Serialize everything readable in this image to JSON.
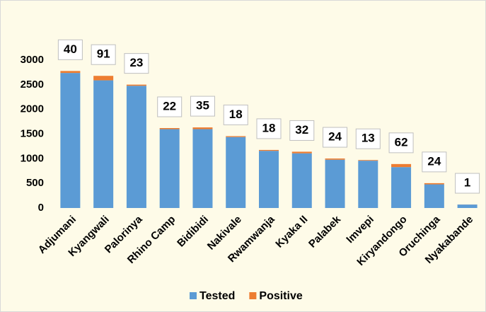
{
  "chart_data": {
    "type": "bar",
    "stacked": true,
    "categories": [
      "Adjumani",
      "Kyangwali",
      "Palorinya",
      "Rhino Camp",
      "Bidibidi",
      "Nakivale",
      "Rwamwanja",
      "Kyaka II",
      "Palabek",
      "Imvepi",
      "Kiryandongo",
      "Oruchinga",
      "Nyakabande"
    ],
    "series": [
      {
        "name": "Tested",
        "color": "#5b9bd5",
        "values": [
          2740,
          2590,
          2480,
          1600,
          1600,
          1440,
          1160,
          1110,
          980,
          960,
          830,
          480,
          70
        ]
      },
      {
        "name": "Positive",
        "color": "#ed7d31",
        "values": [
          40,
          91,
          23,
          22,
          35,
          18,
          18,
          32,
          24,
          13,
          62,
          24,
          1
        ]
      }
    ],
    "ylim": [
      0,
      3000
    ],
    "yticks": [
      0,
      500,
      1000,
      1500,
      2000,
      2500,
      3000
    ],
    "grid": false,
    "legend": "bottom"
  }
}
